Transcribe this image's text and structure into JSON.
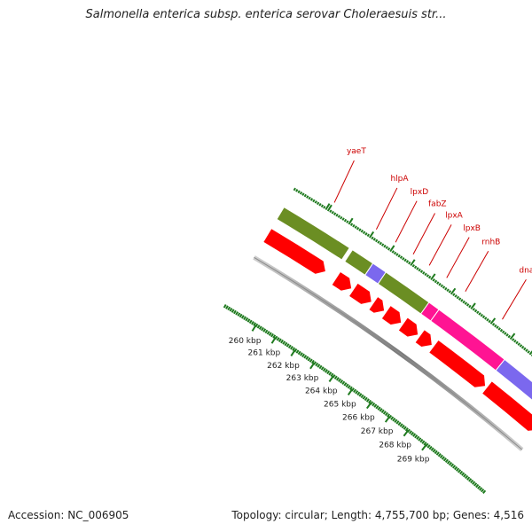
{
  "title": "Salmonella enterica subsp. enterica serovar Choleraesuis str...",
  "footer": {
    "accession_label": "Accession:",
    "accession": "NC_006905",
    "topology_text": "Topology: circular; Length: 4,755,700 bp; Genes: 4,516"
  },
  "colors": {
    "backbone": "#8a8a8a",
    "tick": "#1f7a1f",
    "gene_label": "#cc0000",
    "cds_forward": "#ff0000",
    "green_segment": "#6b8e23",
    "purple_segment": "#7b68ee",
    "pink_segment": "#ff1493"
  },
  "scale": {
    "unit": "kbp",
    "ticks": [
      "260 kbp",
      "261 kbp",
      "262 kbp",
      "263 kbp",
      "264 kbp",
      "265 kbp",
      "266 kbp",
      "267 kbp",
      "268 kbp",
      "269 kbp"
    ]
  },
  "genes": [
    "yaeT",
    "hlpA",
    "lpxD",
    "fabZ",
    "lpxA",
    "lpxB",
    "rnhB",
    "dnaE"
  ]
}
